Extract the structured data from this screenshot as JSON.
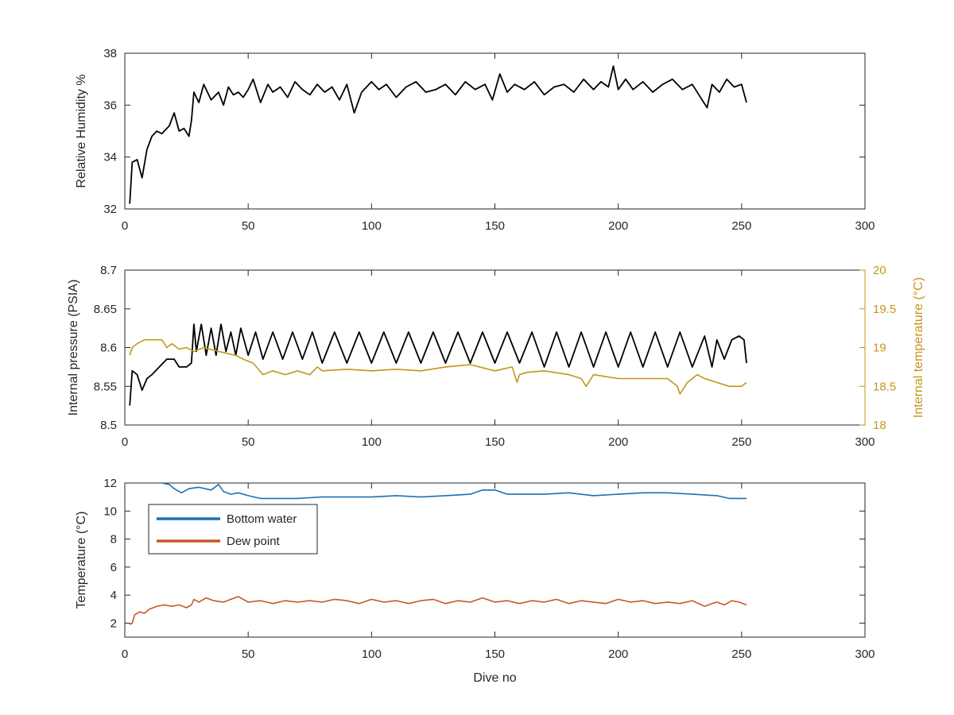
{
  "colors": {
    "rh": "#000000",
    "pressure": "#000000",
    "internal_temp": "#c5961a",
    "bottom_water": "#1f6fae",
    "dew_point": "#c8562a",
    "axis": "#262626"
  },
  "chart_data": [
    {
      "id": "rh",
      "type": "line",
      "xlabel": "",
      "ylabel": "Relative Humidity %",
      "xlim": [
        0,
        300
      ],
      "ylim": [
        32,
        38
      ],
      "xticks": [
        0,
        50,
        100,
        150,
        200,
        250,
        300
      ],
      "yticks": [
        32,
        34,
        36,
        38
      ],
      "grid": false,
      "series": [
        {
          "color_key": "rh",
          "x": [
            2,
            3,
            5,
            7,
            9,
            11,
            13,
            15,
            18,
            20,
            22,
            24,
            26,
            27,
            28,
            30,
            32,
            35,
            38,
            40,
            42,
            44,
            46,
            48,
            50,
            52,
            55,
            58,
            60,
            63,
            66,
            69,
            72,
            75,
            78,
            81,
            84,
            87,
            90,
            93,
            96,
            100,
            103,
            106,
            110,
            114,
            118,
            122,
            126,
            130,
            134,
            138,
            142,
            146,
            149,
            152,
            155,
            158,
            162,
            166,
            170,
            174,
            178,
            182,
            186,
            190,
            193,
            196,
            198,
            200,
            203,
            206,
            210,
            214,
            218,
            222,
            226,
            230,
            234,
            236,
            238,
            241,
            244,
            247,
            250,
            252
          ],
          "y": [
            32.2,
            33.8,
            33.9,
            33.2,
            34.3,
            34.8,
            35.0,
            34.9,
            35.2,
            35.7,
            35.0,
            35.1,
            34.8,
            35.4,
            36.5,
            36.1,
            36.8,
            36.2,
            36.5,
            36.0,
            36.7,
            36.4,
            36.5,
            36.3,
            36.6,
            37.0,
            36.1,
            36.8,
            36.5,
            36.7,
            36.3,
            36.9,
            36.6,
            36.4,
            36.8,
            36.5,
            36.7,
            36.2,
            36.8,
            35.7,
            36.5,
            36.9,
            36.6,
            36.8,
            36.3,
            36.7,
            36.9,
            36.5,
            36.6,
            36.8,
            36.4,
            36.9,
            36.6,
            36.8,
            36.2,
            37.2,
            36.5,
            36.8,
            36.6,
            36.9,
            36.4,
            36.7,
            36.8,
            36.5,
            37.0,
            36.6,
            36.9,
            36.7,
            37.5,
            36.6,
            37.0,
            36.6,
            36.9,
            36.5,
            36.8,
            37.0,
            36.6,
            36.8,
            36.2,
            35.9,
            36.8,
            36.5,
            37.0,
            36.7,
            36.8,
            36.1
          ]
        }
      ]
    },
    {
      "id": "pressure",
      "type": "line",
      "xlabel": "",
      "ylabel": "Internal pressure (PSIA)",
      "y2label": "Internal temperature (°C)",
      "xlim": [
        0,
        300
      ],
      "ylim": [
        8.5,
        8.7
      ],
      "y2lim": [
        18,
        20
      ],
      "xticks": [
        0,
        50,
        100,
        150,
        200,
        250,
        300
      ],
      "yticks": [
        8.5,
        8.55,
        8.6,
        8.65,
        8.7
      ],
      "yticklabels": [
        "8.5",
        "8.55",
        "8.6",
        "8.65",
        "8.7"
      ],
      "y2ticks": [
        18,
        18.5,
        19,
        19.5,
        20
      ],
      "y2ticklabels": [
        "18",
        "18.5",
        "19",
        "19.5",
        "20"
      ],
      "grid": false,
      "series": [
        {
          "axis": "left",
          "color_key": "pressure",
          "x": [
            2,
            3,
            5,
            7,
            9,
            11,
            14,
            17,
            20,
            22,
            25,
            27,
            28,
            29,
            31,
            33,
            35,
            37,
            39,
            41,
            43,
            45,
            47,
            50,
            53,
            56,
            60,
            64,
            68,
            72,
            76,
            80,
            85,
            90,
            95,
            100,
            105,
            110,
            115,
            120,
            125,
            130,
            135,
            140,
            145,
            150,
            155,
            160,
            165,
            170,
            175,
            180,
            185,
            190,
            195,
            200,
            205,
            210,
            215,
            220,
            225,
            230,
            235,
            238,
            240,
            243,
            246,
            249,
            251,
            252
          ],
          "y": [
            8.525,
            8.57,
            8.565,
            8.545,
            8.56,
            8.565,
            8.575,
            8.585,
            8.585,
            8.575,
            8.575,
            8.58,
            8.63,
            8.595,
            8.63,
            8.59,
            8.625,
            8.59,
            8.63,
            8.595,
            8.62,
            8.59,
            8.625,
            8.59,
            8.62,
            8.585,
            8.62,
            8.585,
            8.62,
            8.585,
            8.62,
            8.58,
            8.62,
            8.58,
            8.62,
            8.58,
            8.62,
            8.58,
            8.62,
            8.58,
            8.62,
            8.58,
            8.62,
            8.58,
            8.62,
            8.58,
            8.62,
            8.58,
            8.62,
            8.575,
            8.62,
            8.575,
            8.62,
            8.575,
            8.62,
            8.575,
            8.62,
            8.575,
            8.62,
            8.575,
            8.62,
            8.575,
            8.615,
            8.575,
            8.61,
            8.585,
            8.61,
            8.615,
            8.61,
            8.58
          ]
        },
        {
          "axis": "right",
          "color_key": "internal_temp",
          "x": [
            2,
            3,
            5,
            8,
            10,
            15,
            17,
            19,
            22,
            25,
            28,
            32,
            38,
            45,
            48,
            52,
            56,
            60,
            65,
            70,
            75,
            78,
            80,
            90,
            100,
            110,
            120,
            130,
            140,
            150,
            157,
            159,
            160,
            163,
            170,
            180,
            185,
            187,
            190,
            200,
            210,
            220,
            224,
            225,
            228,
            232,
            235,
            240,
            245,
            250,
            252
          ],
          "y": [
            18.9,
            19.0,
            19.05,
            19.1,
            19.1,
            19.1,
            19.0,
            19.05,
            18.98,
            19.0,
            18.95,
            19.0,
            18.95,
            18.9,
            18.85,
            18.8,
            18.65,
            18.7,
            18.65,
            18.7,
            18.65,
            18.75,
            18.7,
            18.72,
            18.7,
            18.72,
            18.7,
            18.75,
            18.78,
            18.7,
            18.75,
            18.55,
            18.65,
            18.68,
            18.7,
            18.65,
            18.6,
            18.5,
            18.65,
            18.6,
            18.6,
            18.6,
            18.5,
            18.4,
            18.55,
            18.65,
            18.6,
            18.55,
            18.5,
            18.5,
            18.55
          ]
        }
      ]
    },
    {
      "id": "temperature",
      "type": "line",
      "xlabel": "Dive no",
      "ylabel": "Temperature (°C)",
      "xlim": [
        0,
        300
      ],
      "ylim": [
        1,
        12
      ],
      "xticks": [
        0,
        50,
        100,
        150,
        200,
        250,
        300
      ],
      "yticks": [
        2,
        4,
        6,
        8,
        10,
        12
      ],
      "grid": false,
      "legend": "top-left",
      "series": [
        {
          "name": "Bottom water",
          "color_key": "bottom_water",
          "x": [
            15,
            18,
            20,
            23,
            26,
            30,
            35,
            38,
            40,
            43,
            46,
            50,
            55,
            60,
            70,
            80,
            90,
            100,
            110,
            120,
            130,
            140,
            145,
            150,
            155,
            160,
            170,
            180,
            190,
            200,
            210,
            220,
            230,
            240,
            245,
            252
          ],
          "y": [
            12.0,
            11.9,
            11.6,
            11.3,
            11.6,
            11.7,
            11.5,
            11.9,
            11.4,
            11.2,
            11.3,
            11.1,
            10.9,
            10.9,
            10.9,
            11.0,
            11.0,
            11.0,
            11.1,
            11.0,
            11.1,
            11.2,
            11.5,
            11.5,
            11.2,
            11.2,
            11.2,
            11.3,
            11.1,
            11.2,
            11.3,
            11.3,
            11.2,
            11.1,
            10.9,
            10.9
          ]
        },
        {
          "name": "Dew point",
          "color_key": "dew_point",
          "x": [
            2,
            3,
            4,
            6,
            8,
            10,
            13,
            16,
            19,
            22,
            25,
            27,
            28,
            30,
            33,
            36,
            40,
            43,
            46,
            50,
            55,
            60,
            65,
            70,
            75,
            80,
            85,
            90,
            95,
            100,
            105,
            110,
            115,
            120,
            125,
            130,
            135,
            140,
            145,
            150,
            155,
            160,
            165,
            170,
            175,
            180,
            185,
            190,
            195,
            200,
            205,
            210,
            215,
            220,
            225,
            230,
            235,
            238,
            240,
            243,
            246,
            249,
            252
          ],
          "y": [
            1.9,
            2.0,
            2.6,
            2.8,
            2.7,
            3.0,
            3.2,
            3.3,
            3.2,
            3.3,
            3.1,
            3.3,
            3.7,
            3.5,
            3.8,
            3.6,
            3.5,
            3.7,
            3.9,
            3.5,
            3.6,
            3.4,
            3.6,
            3.5,
            3.6,
            3.5,
            3.7,
            3.6,
            3.4,
            3.7,
            3.5,
            3.6,
            3.4,
            3.6,
            3.7,
            3.4,
            3.6,
            3.5,
            3.8,
            3.5,
            3.6,
            3.4,
            3.6,
            3.5,
            3.7,
            3.4,
            3.6,
            3.5,
            3.4,
            3.7,
            3.5,
            3.6,
            3.4,
            3.5,
            3.4,
            3.6,
            3.2,
            3.4,
            3.5,
            3.3,
            3.6,
            3.5,
            3.3
          ]
        }
      ]
    }
  ]
}
